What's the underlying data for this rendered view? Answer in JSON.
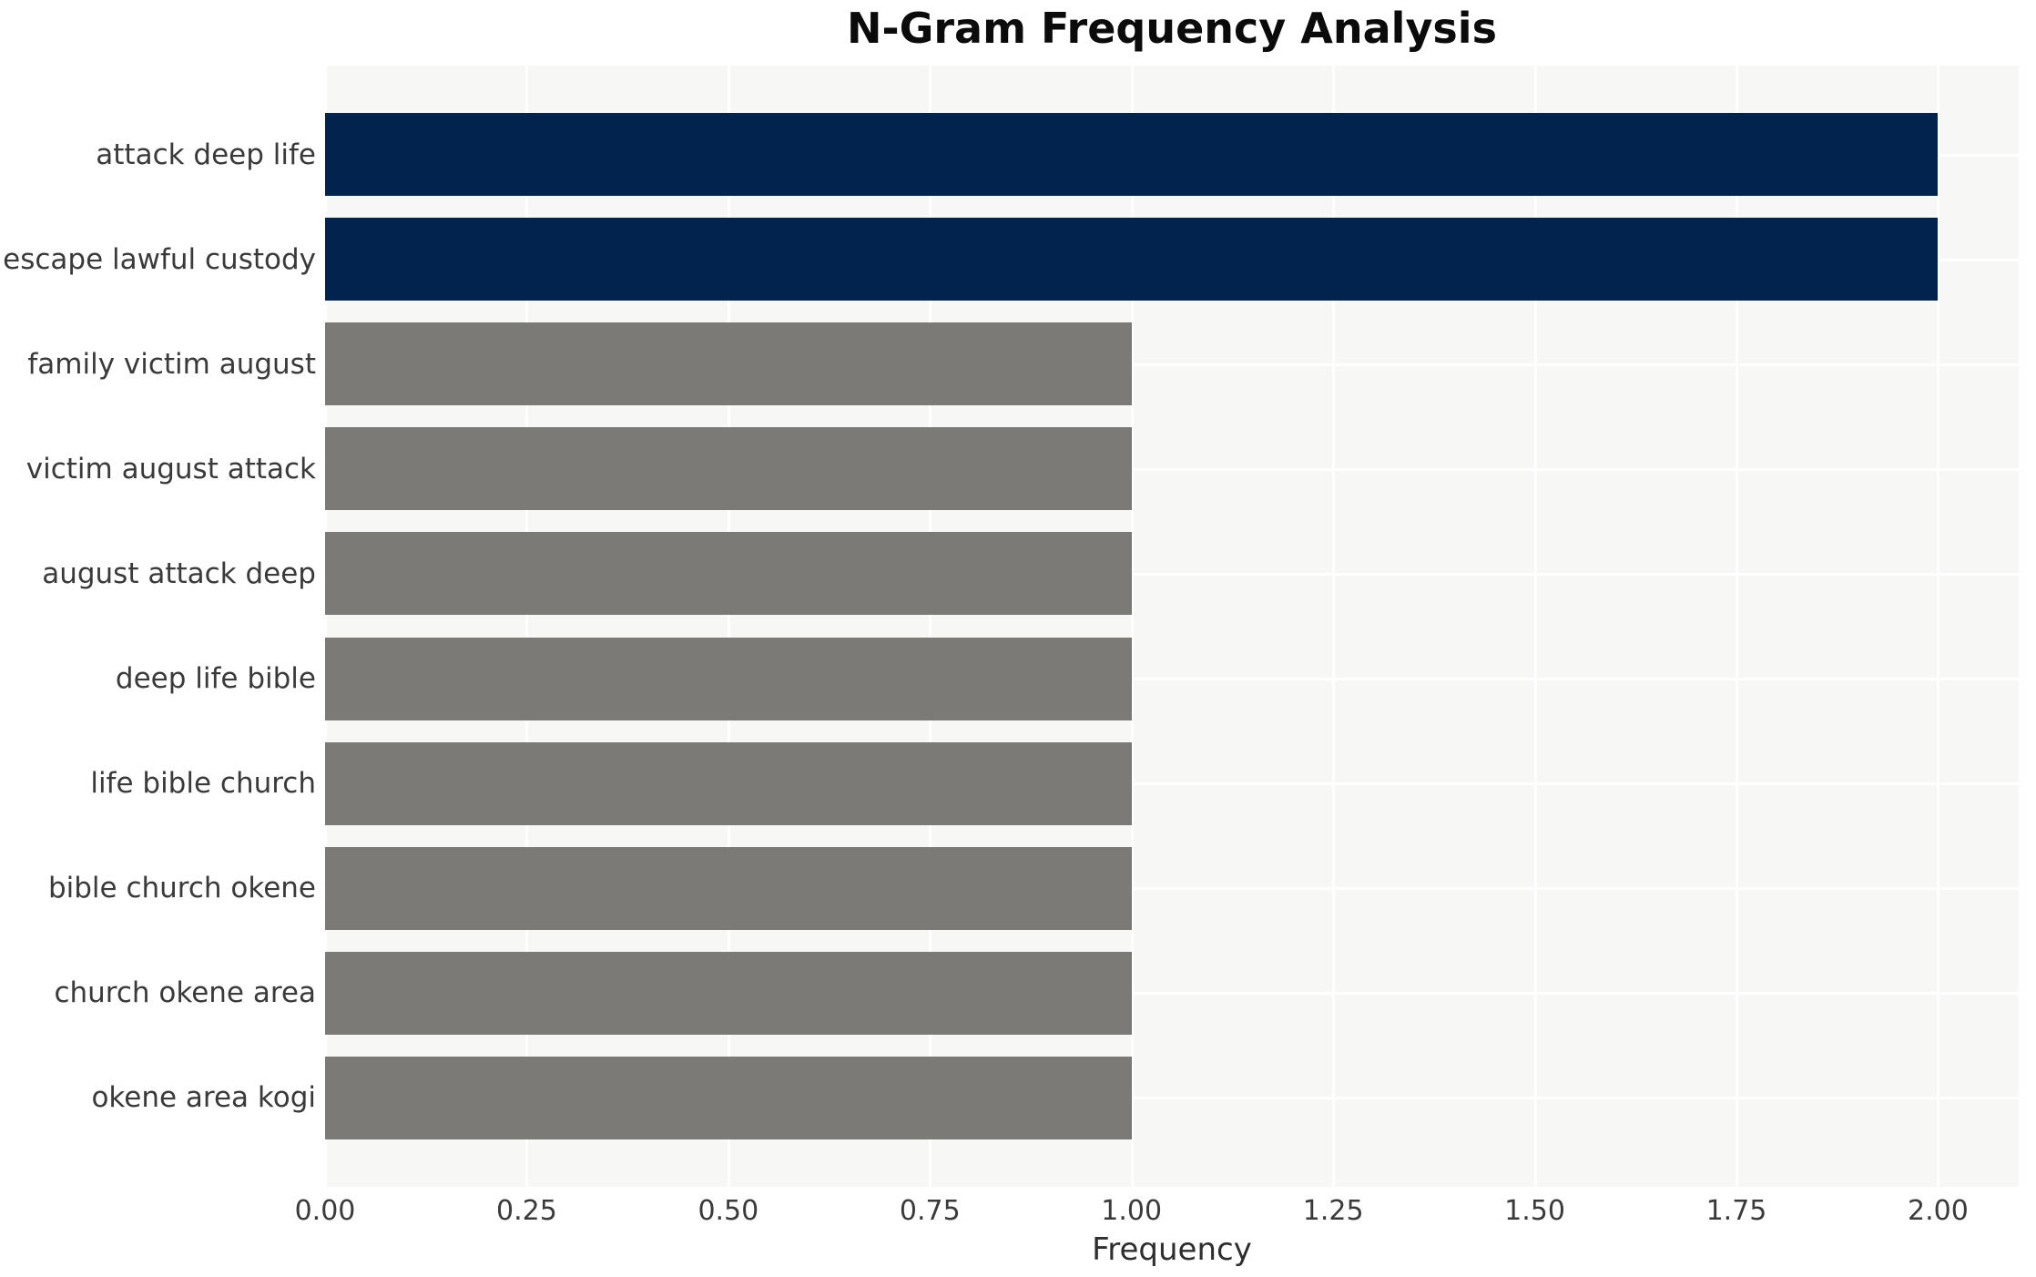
{
  "chart_data": {
    "type": "bar",
    "orientation": "horizontal",
    "title": "N-Gram Frequency Analysis",
    "xlabel": "Frequency",
    "ylabel": "",
    "categories": [
      "attack deep life",
      "escape lawful custody",
      "family victim august",
      "victim august attack",
      "august attack deep",
      "deep life bible",
      "life bible church",
      "bible church okene",
      "church okene area",
      "okene area kogi"
    ],
    "values": [
      2,
      2,
      1,
      1,
      1,
      1,
      1,
      1,
      1,
      1
    ],
    "bar_colors": [
      "#02234e",
      "#02234e",
      "#7b7a77",
      "#7b7a77",
      "#7b7a77",
      "#7b7a77",
      "#7b7a77",
      "#7b7a77",
      "#7b7a77",
      "#7b7a77"
    ],
    "xlim": [
      0,
      2.1
    ],
    "xtick_labels": [
      "0.00",
      "0.25",
      "0.50",
      "0.75",
      "1.00",
      "1.25",
      "1.50",
      "1.75",
      "2.00"
    ],
    "xtick_values": [
      0,
      0.25,
      0.5,
      0.75,
      1.0,
      1.25,
      1.5,
      1.75,
      2.0
    ],
    "grid": true,
    "legend_position": "none"
  },
  "colors": {
    "highlight_bar": "#02234e",
    "regular_bar": "#7b7a77",
    "plot_background": "#f7f7f6",
    "gridline": "#ffffff",
    "tick_text": "#3a3a3a",
    "title_text": "#0b0b0b",
    "page_background": "#ffffff"
  }
}
